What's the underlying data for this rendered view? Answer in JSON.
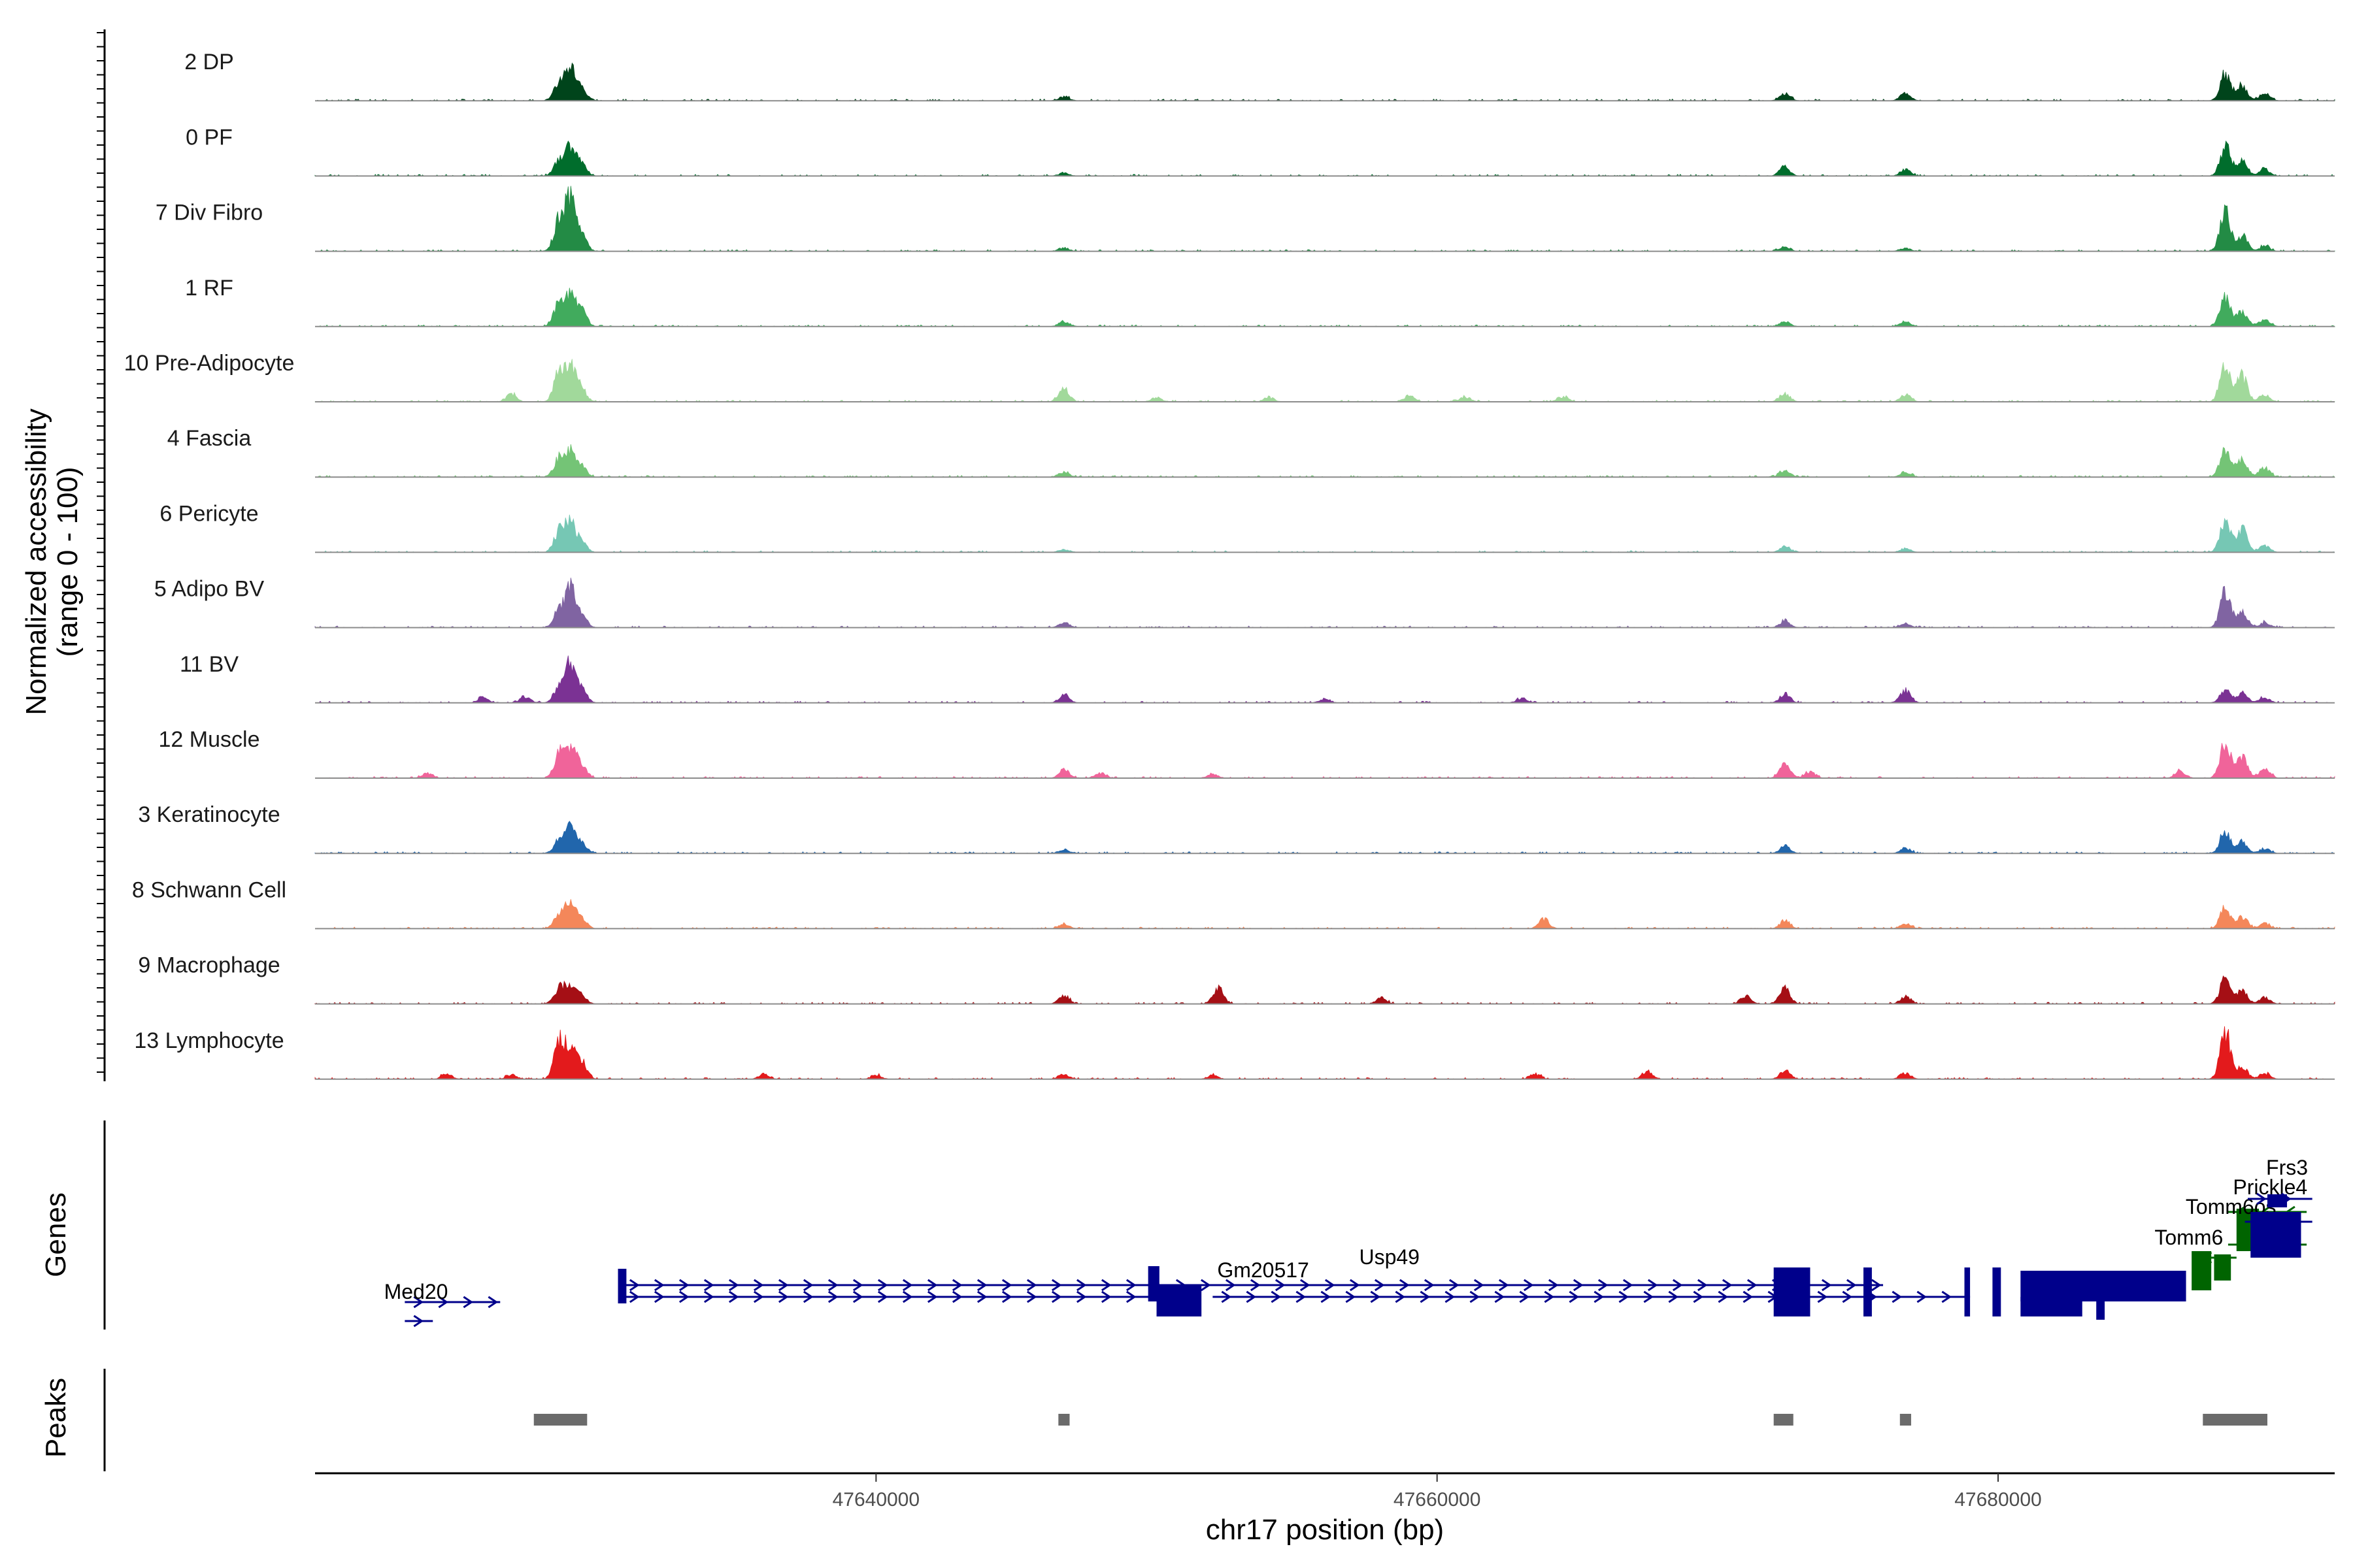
{
  "colors": {
    "baseline": "#8c8c8c",
    "axis": "#000000",
    "gene_plus": "#00008b",
    "gene_minus": "#006400",
    "peak": "#6b6b6b"
  },
  "chart_data": {
    "type": "area",
    "title": "",
    "ylabel": [
      "Normalized accessibility",
      "(range 0 - 100)"
    ],
    "xlabel": "chr17 position (bp)",
    "xlim": [
      47620000,
      47692000
    ],
    "ylim": [
      0,
      100
    ],
    "xticks": [
      47640000,
      47660000,
      47680000
    ],
    "xtick_labels": [
      "47640000",
      "47660000",
      "47680000"
    ],
    "panel_labels": {
      "genes": "Genes",
      "peaks": "Peaks"
    },
    "tracks": [
      {
        "name": "2 DP",
        "color": "#00441b",
        "peaks": [
          [
            47628700,
            35
          ],
          [
            47629100,
            60
          ],
          [
            47629500,
            25
          ],
          [
            47646700,
            8
          ],
          [
            47672400,
            14
          ],
          [
            47676700,
            14
          ],
          [
            47688100,
            50
          ],
          [
            47688700,
            28
          ],
          [
            47689500,
            14
          ]
        ]
      },
      {
        "name": "0 PF",
        "color": "#006d2c",
        "peaks": [
          [
            47628700,
            30
          ],
          [
            47629100,
            55
          ],
          [
            47629500,
            25
          ],
          [
            47646700,
            6
          ],
          [
            47672400,
            18
          ],
          [
            47676700,
            12
          ],
          [
            47688100,
            58
          ],
          [
            47688700,
            30
          ],
          [
            47689500,
            12
          ]
        ]
      },
      {
        "name": "7 Div Fibro",
        "color": "#238b45",
        "peaks": [
          [
            47628700,
            60
          ],
          [
            47629100,
            100
          ],
          [
            47629500,
            30
          ],
          [
            47646700,
            7
          ],
          [
            47672400,
            8
          ],
          [
            47676700,
            6
          ],
          [
            47688100,
            75
          ],
          [
            47688700,
            30
          ],
          [
            47689500,
            10
          ]
        ]
      },
      {
        "name": "1 RF",
        "color": "#41ab5d",
        "peaks": [
          [
            47628700,
            45
          ],
          [
            47629100,
            60
          ],
          [
            47629500,
            30
          ],
          [
            47646700,
            10
          ],
          [
            47672400,
            10
          ],
          [
            47676700,
            10
          ],
          [
            47688100,
            55
          ],
          [
            47688700,
            30
          ],
          [
            47689500,
            15
          ]
        ]
      },
      {
        "name": "10 Pre-Adipocyte",
        "color": "#a1d99b",
        "peaks": [
          [
            47627000,
            15
          ],
          [
            47628700,
            60
          ],
          [
            47629100,
            70
          ],
          [
            47629500,
            25
          ],
          [
            47646700,
            28
          ],
          [
            47650000,
            8
          ],
          [
            47654000,
            8
          ],
          [
            47659000,
            12
          ],
          [
            47661000,
            10
          ],
          [
            47664500,
            10
          ],
          [
            47672400,
            16
          ],
          [
            47676700,
            14
          ],
          [
            47688100,
            78
          ],
          [
            47688700,
            50
          ],
          [
            47689500,
            12
          ]
        ]
      },
      {
        "name": "4 Fascia",
        "color": "#74c476",
        "peaks": [
          [
            47628700,
            35
          ],
          [
            47629100,
            45
          ],
          [
            47629500,
            20
          ],
          [
            47646700,
            10
          ],
          [
            47672400,
            14
          ],
          [
            47676700,
            10
          ],
          [
            47688100,
            55
          ],
          [
            47688700,
            35
          ],
          [
            47689500,
            18
          ]
        ]
      },
      {
        "name": "6 Pericyte",
        "color": "#76c7b4",
        "peaks": [
          [
            47628700,
            40
          ],
          [
            47629100,
            55
          ],
          [
            47629500,
            20
          ],
          [
            47646700,
            6
          ],
          [
            47672400,
            12
          ],
          [
            47676700,
            8
          ],
          [
            47688100,
            60
          ],
          [
            47688700,
            45
          ],
          [
            47689500,
            14
          ]
        ]
      },
      {
        "name": "5 Adipo BV",
        "color": "#8064a2",
        "peaks": [
          [
            47628700,
            35
          ],
          [
            47629100,
            75
          ],
          [
            47629500,
            25
          ],
          [
            47646700,
            10
          ],
          [
            47672400,
            14
          ],
          [
            47676700,
            8
          ],
          [
            47688100,
            70
          ],
          [
            47688700,
            30
          ],
          [
            47689500,
            10
          ]
        ]
      },
      {
        "name": "11 BV",
        "color": "#7b3294",
        "peaks": [
          [
            47626000,
            10
          ],
          [
            47627500,
            12
          ],
          [
            47628700,
            30
          ],
          [
            47629100,
            75
          ],
          [
            47629500,
            30
          ],
          [
            47646700,
            15
          ],
          [
            47656000,
            8
          ],
          [
            47663000,
            8
          ],
          [
            47672400,
            18
          ],
          [
            47676700,
            25
          ],
          [
            47688100,
            25
          ],
          [
            47688700,
            18
          ],
          [
            47689500,
            10
          ]
        ]
      },
      {
        "name": "12 Muscle",
        "color": "#f0649a",
        "peaks": [
          [
            47624000,
            10
          ],
          [
            47628700,
            45
          ],
          [
            47629100,
            60
          ],
          [
            47629500,
            25
          ],
          [
            47646700,
            16
          ],
          [
            47648000,
            10
          ],
          [
            47652000,
            8
          ],
          [
            47672400,
            30
          ],
          [
            47673300,
            12
          ],
          [
            47686500,
            14
          ],
          [
            47688100,
            70
          ],
          [
            47688700,
            40
          ],
          [
            47689500,
            18
          ]
        ]
      },
      {
        "name": "3 Keratinocyte",
        "color": "#2166ac",
        "peaks": [
          [
            47628700,
            25
          ],
          [
            47629100,
            50
          ],
          [
            47629500,
            20
          ],
          [
            47646700,
            8
          ],
          [
            47672400,
            14
          ],
          [
            47676700,
            10
          ],
          [
            47688100,
            45
          ],
          [
            47688700,
            20
          ],
          [
            47689500,
            10
          ]
        ]
      },
      {
        "name": "8 Schwann Cell",
        "color": "#f4875a",
        "peaks": [
          [
            47628700,
            25
          ],
          [
            47629100,
            50
          ],
          [
            47629500,
            20
          ],
          [
            47646700,
            8
          ],
          [
            47663800,
            20
          ],
          [
            47672400,
            16
          ],
          [
            47676700,
            10
          ],
          [
            47688100,
            40
          ],
          [
            47688700,
            22
          ],
          [
            47689500,
            10
          ]
        ]
      },
      {
        "name": "9 Macrophage",
        "color": "#a50f15",
        "peaks": [
          [
            47628700,
            30
          ],
          [
            47629100,
            35
          ],
          [
            47629500,
            15
          ],
          [
            47646700,
            18
          ],
          [
            47652200,
            30
          ],
          [
            47658000,
            12
          ],
          [
            47671000,
            15
          ],
          [
            47672400,
            30
          ],
          [
            47676700,
            15
          ],
          [
            47688100,
            50
          ],
          [
            47688700,
            25
          ],
          [
            47689500,
            12
          ]
        ]
      },
      {
        "name": "13 Lymphocyte",
        "color": "#e31a1c",
        "peaks": [
          [
            47624700,
            10
          ],
          [
            47627000,
            8
          ],
          [
            47628700,
            70
          ],
          [
            47629100,
            60
          ],
          [
            47629500,
            35
          ],
          [
            47636000,
            10
          ],
          [
            47640000,
            8
          ],
          [
            47646700,
            10
          ],
          [
            47652000,
            8
          ],
          [
            47663500,
            10
          ],
          [
            47667500,
            15
          ],
          [
            47672400,
            18
          ],
          [
            47676700,
            12
          ],
          [
            47688100,
            90
          ],
          [
            47688700,
            25
          ],
          [
            47689500,
            12
          ]
        ]
      }
    ],
    "genes": [
      {
        "name": "Med20",
        "strand": "+",
        "start": 47623200,
        "end": 47626600,
        "label_at": 47623600
      },
      {
        "name": "Usp49",
        "strand": "+",
        "start": 47630900,
        "end": 47675900,
        "label_at": 47658300
      },
      {
        "name": "Gm20517",
        "strand": "+",
        "start": 47649700,
        "end": 47684000,
        "label_at": 47653800
      },
      {
        "name": "Tomm6",
        "strand": "-",
        "start": 47687000,
        "end": 47688400,
        "label_at": 47686800
      },
      {
        "name": "Tomm6os",
        "strand": "-",
        "start": 47687800,
        "end": 47691000,
        "label_at": 47688300
      },
      {
        "name": "Prickle4",
        "strand": "+",
        "start": 47688800,
        "end": 47691200,
        "label_at": 47689700
      },
      {
        "name": "Frs3",
        "strand": "+",
        "start": 47688900,
        "end": 47691200,
        "label_at": 47690300
      }
    ],
    "peak_regions": [
      [
        47627800,
        47629700
      ],
      [
        47646500,
        47646900
      ],
      [
        47672000,
        47672700
      ],
      [
        47676500,
        47676900
      ],
      [
        47687300,
        47689600
      ]
    ]
  }
}
